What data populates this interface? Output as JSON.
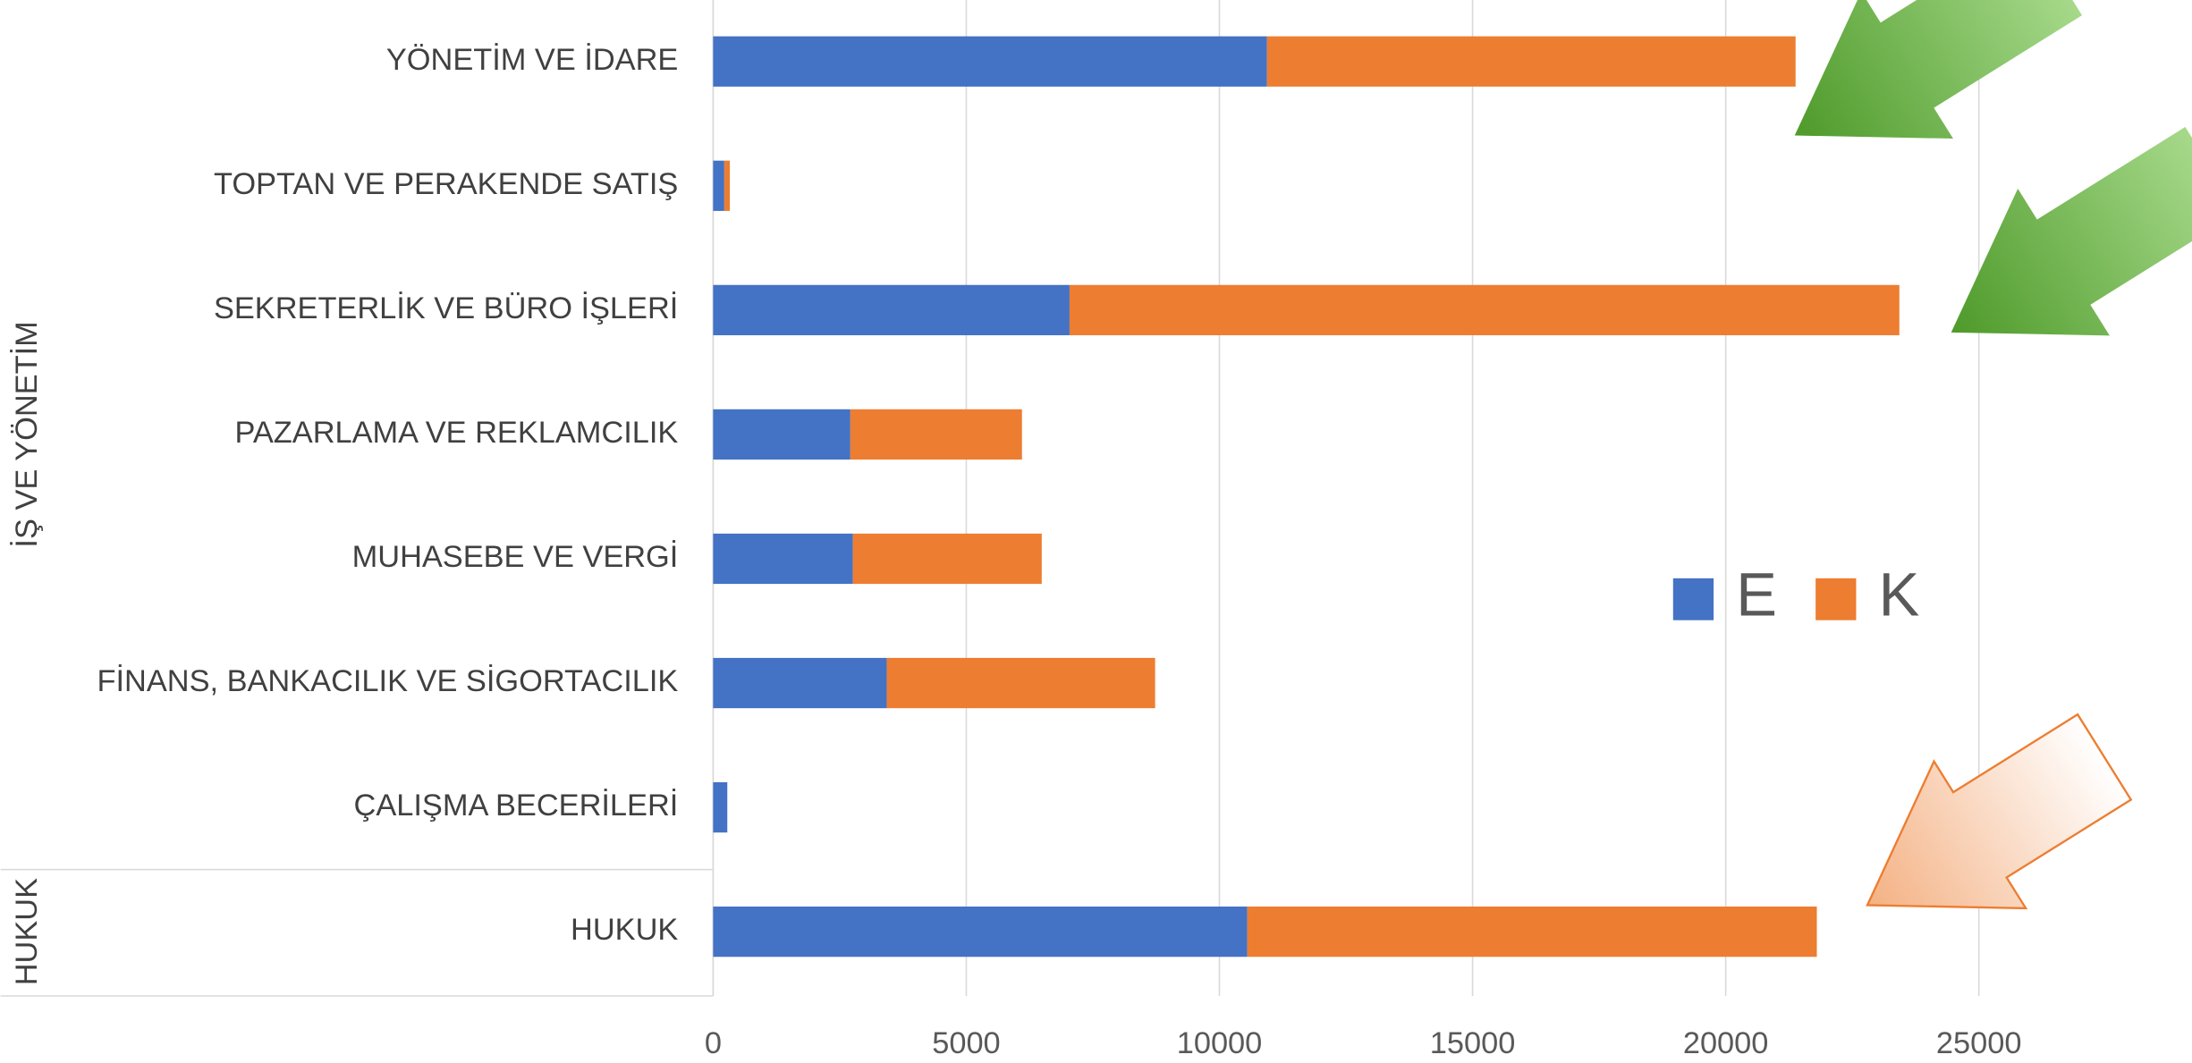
{
  "chart_data": {
    "type": "stacked-bar-horizontal",
    "groups": [
      {
        "name": "İŞ VE YÖNETİM",
        "categories": [
          "YÖNETİM VE İDARE",
          "TOPTAN VE PERAKENDE SATIŞ",
          "SEKRETERLİK VE BÜRO İŞLERİ",
          "PAZARLAMA VE REKLAMCILIK",
          "MUHASEBE VE VERGİ",
          "FİNANS, BANKACILIK VE SİGORTACILIK",
          "ÇALIŞMA BECERİLERİ"
        ]
      },
      {
        "name": "HUKUK",
        "categories": [
          "HUKUK"
        ]
      }
    ],
    "series": [
      {
        "name": "E",
        "color": "#4472c4",
        "values": [
          10940,
          220,
          7040,
          2710,
          2760,
          3430,
          280,
          10550
        ]
      },
      {
        "name": "K",
        "color": "#ed7d31",
        "values": [
          10440,
          110,
          16390,
          3390,
          3730,
          5300,
          0,
          11250
        ]
      }
    ],
    "xlim": [
      0,
      29200
    ],
    "xticks": [
      0,
      5000,
      10000,
      15000,
      20000,
      25000
    ],
    "grid": true,
    "legend": "right"
  }
}
